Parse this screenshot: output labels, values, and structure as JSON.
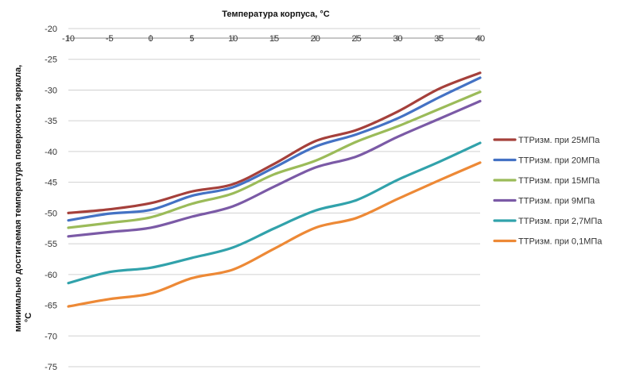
{
  "chart_data": {
    "type": "line",
    "title": "Температура корпуса, °С",
    "xlabel": "Температура корпуса, °С",
    "ylabel": "минимально достигаемая температура поверхности зеркала, °С",
    "xlim": [
      -10,
      40
    ],
    "ylim": [
      -75,
      -20
    ],
    "x_ticks": [
      "-10",
      "-5",
      "0",
      "5",
      "10",
      "15",
      "20",
      "25",
      "30",
      "35",
      "40"
    ],
    "y_ticks": [
      "-20",
      "-25",
      "-30",
      "-35",
      "-40",
      "-45",
      "-50",
      "-55",
      "-60",
      "-65",
      "-70",
      "-75"
    ],
    "x_axis_position": "top",
    "grid": true,
    "legend_position": "right",
    "x": [
      -10,
      -5,
      0,
      5,
      10,
      15,
      20,
      25,
      30,
      35,
      40
    ],
    "series": [
      {
        "name": "ТТРизм. при 25МПа",
        "color": "#A5403B",
        "values": [
          -50,
          -49.4,
          -48.4,
          -46.5,
          -45.3,
          -42,
          -38.3,
          -36.5,
          -33.5,
          -29.8,
          -27.2
        ]
      },
      {
        "name": "ТТРизм. при 20МПа",
        "color": "#4472C4",
        "values": [
          -51.2,
          -50.1,
          -49.5,
          -47.2,
          -45.8,
          -42.6,
          -39.2,
          -37.2,
          -34.6,
          -31.2,
          -28
        ]
      },
      {
        "name": "ТТРизм. при 15МПа",
        "color": "#9BBB59",
        "values": [
          -52.4,
          -51.6,
          -50.7,
          -48.5,
          -46.8,
          -43.7,
          -41.5,
          -38.4,
          -35.9,
          -33.1,
          -30.3
        ]
      },
      {
        "name": "ТТРизм. при 9МПа",
        "color": "#7B5AA6",
        "values": [
          -53.8,
          -53.1,
          -52.4,
          -50.6,
          -48.9,
          -45.7,
          -42.6,
          -40.8,
          -37.6,
          -34.7,
          -31.8
        ]
      },
      {
        "name": "ТТРизм. при 2,7МПа",
        "color": "#31A2AB",
        "values": [
          -61.4,
          -59.6,
          -58.9,
          -57.3,
          -55.6,
          -52.5,
          -49.6,
          -47.9,
          -44.6,
          -41.7,
          -38.6
        ]
      },
      {
        "name": "ТТРизм. при 0,1МПа",
        "color": "#ED8936",
        "values": [
          -65.2,
          -64,
          -63.1,
          -60.6,
          -59.2,
          -55.8,
          -52.4,
          -50.8,
          -47.7,
          -44.7,
          -41.8
        ]
      }
    ]
  }
}
